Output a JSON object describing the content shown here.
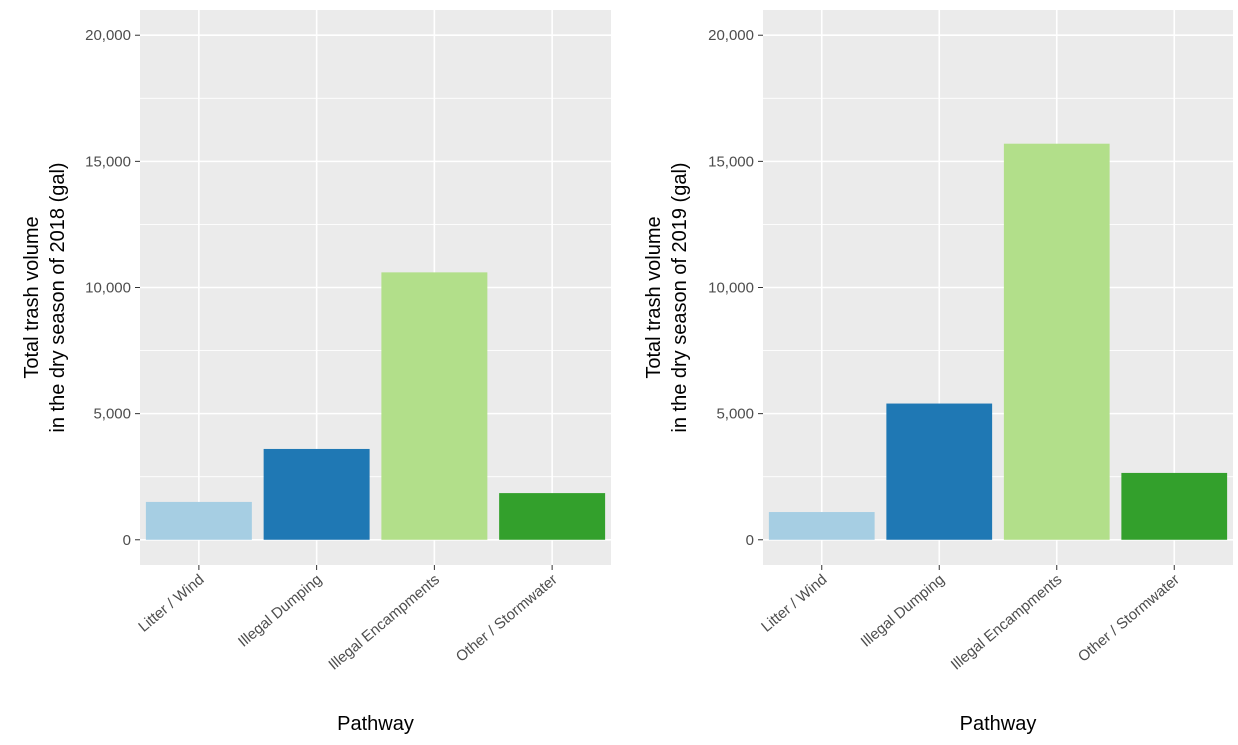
{
  "chart_data": [
    {
      "type": "bar",
      "categories": [
        "Litter / Wind",
        "Illegal Dumping",
        "Illegal Encampments",
        "Other / Stormwater"
      ],
      "values": [
        1500,
        3600,
        10600,
        1850
      ],
      "colors": [
        "#a6cee3",
        "#1f78b4",
        "#b2df8a",
        "#33a02c"
      ],
      "xlabel": "Pathway",
      "ylabel": [
        "Total trash volume",
        "in the dry season of 2018 (gal)"
      ],
      "ylim": [
        -1000,
        21000
      ],
      "yticks": [
        0,
        5000,
        10000,
        15000,
        20000
      ],
      "ytick_labels": [
        "0",
        "5,000",
        "10,000",
        "15,000",
        "20,000"
      ],
      "grid": true,
      "legend": "none"
    },
    {
      "type": "bar",
      "categories": [
        "Litter / Wind",
        "Illegal Dumping",
        "Illegal Encampments",
        "Other / Stormwater"
      ],
      "values": [
        1100,
        5400,
        15700,
        2650
      ],
      "colors": [
        "#a6cee3",
        "#1f78b4",
        "#b2df8a",
        "#33a02c"
      ],
      "xlabel": "Pathway",
      "ylabel": [
        "Total trash volume",
        "in the dry season of 2019 (gal)"
      ],
      "ylim": [
        -1000,
        21000
      ],
      "yticks": [
        0,
        5000,
        10000,
        15000,
        20000
      ],
      "ytick_labels": [
        "0",
        "5,000",
        "10,000",
        "15,000",
        "20,000"
      ],
      "grid": true,
      "legend": "none"
    }
  ]
}
